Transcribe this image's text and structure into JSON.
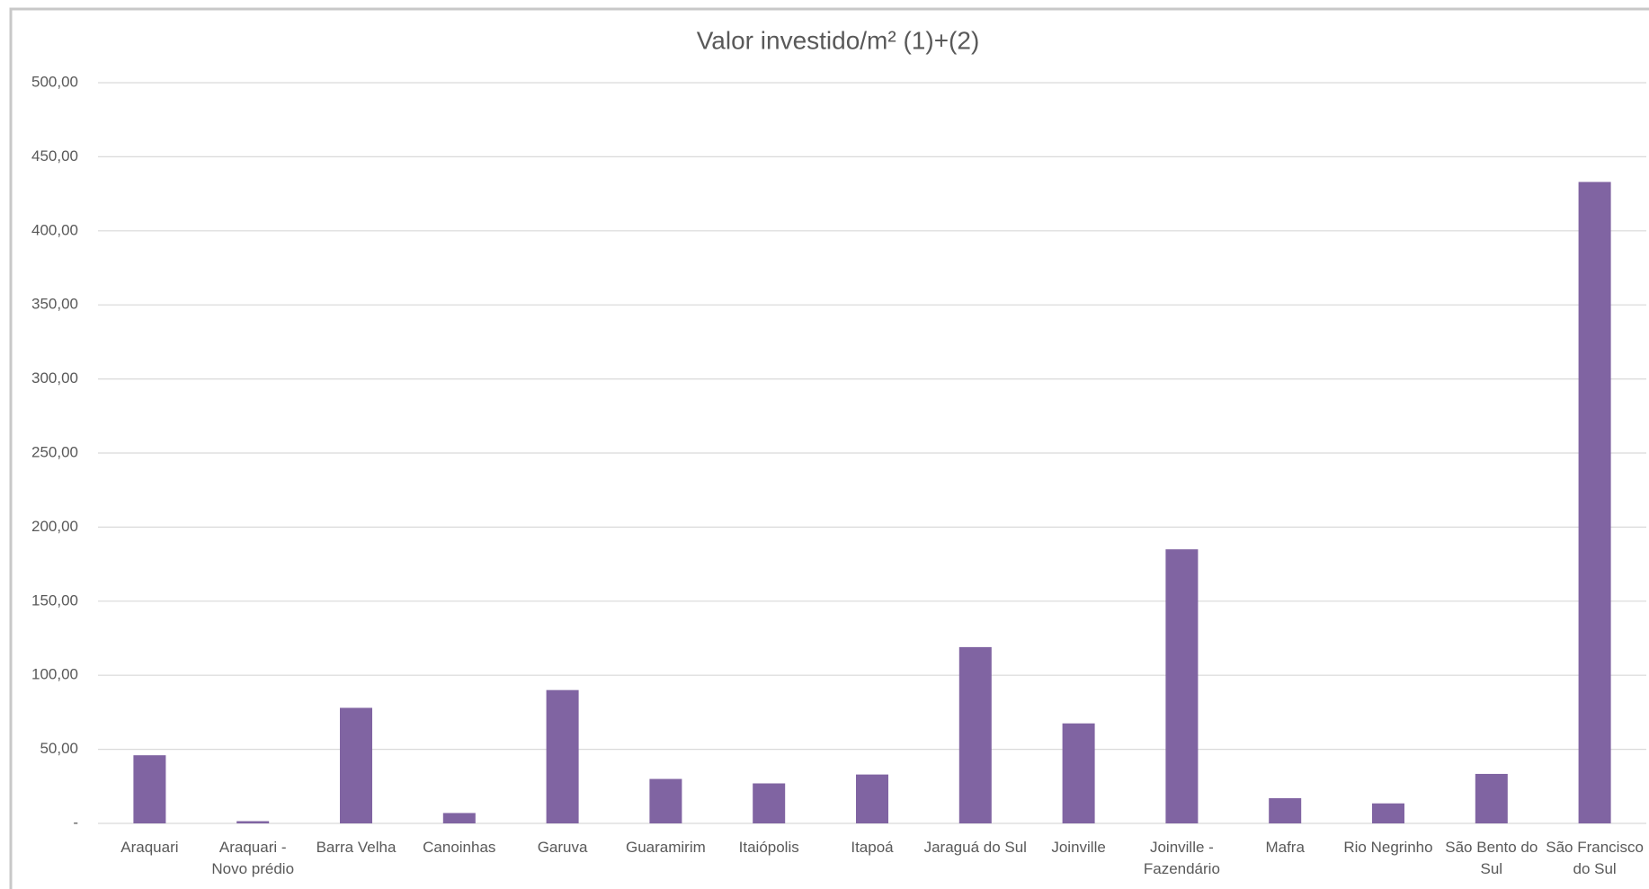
{
  "chart_data": {
    "type": "bar",
    "title": "Valor investido/m² (1)+(2)",
    "categories": [
      "Araquari",
      "Araquari - Novo prédio",
      "Barra Velha",
      "Canoinhas",
      "Garuva",
      "Guaramirim",
      "Itaiópolis",
      "Itapoá",
      "Jaraguá do Sul",
      "Joinville",
      "Joinville - Fazendário",
      "Mafra",
      "Rio Negrinho",
      "São Bento do Sul",
      "São Francisco do Sul"
    ],
    "values": [
      46,
      1.5,
      78,
      7,
      90,
      30,
      27,
      33,
      119,
      67.5,
      185,
      17,
      13.5,
      33.4,
      433
    ],
    "color": "#8064a2",
    "ylim": [
      0,
      500
    ],
    "yticks": [
      {
        "value": 0,
        "label": "-"
      },
      {
        "value": 50,
        "label": "50,00"
      },
      {
        "value": 100,
        "label": "100,00"
      },
      {
        "value": 150,
        "label": "150,00"
      },
      {
        "value": 200,
        "label": "200,00"
      },
      {
        "value": 250,
        "label": "250,00"
      },
      {
        "value": 300,
        "label": "300,00"
      },
      {
        "value": 350,
        "label": "350,00"
      },
      {
        "value": 400,
        "label": "400,00"
      },
      {
        "value": 450,
        "label": "450,00"
      },
      {
        "value": 500,
        "label": "500,00"
      }
    ],
    "grid": true
  }
}
